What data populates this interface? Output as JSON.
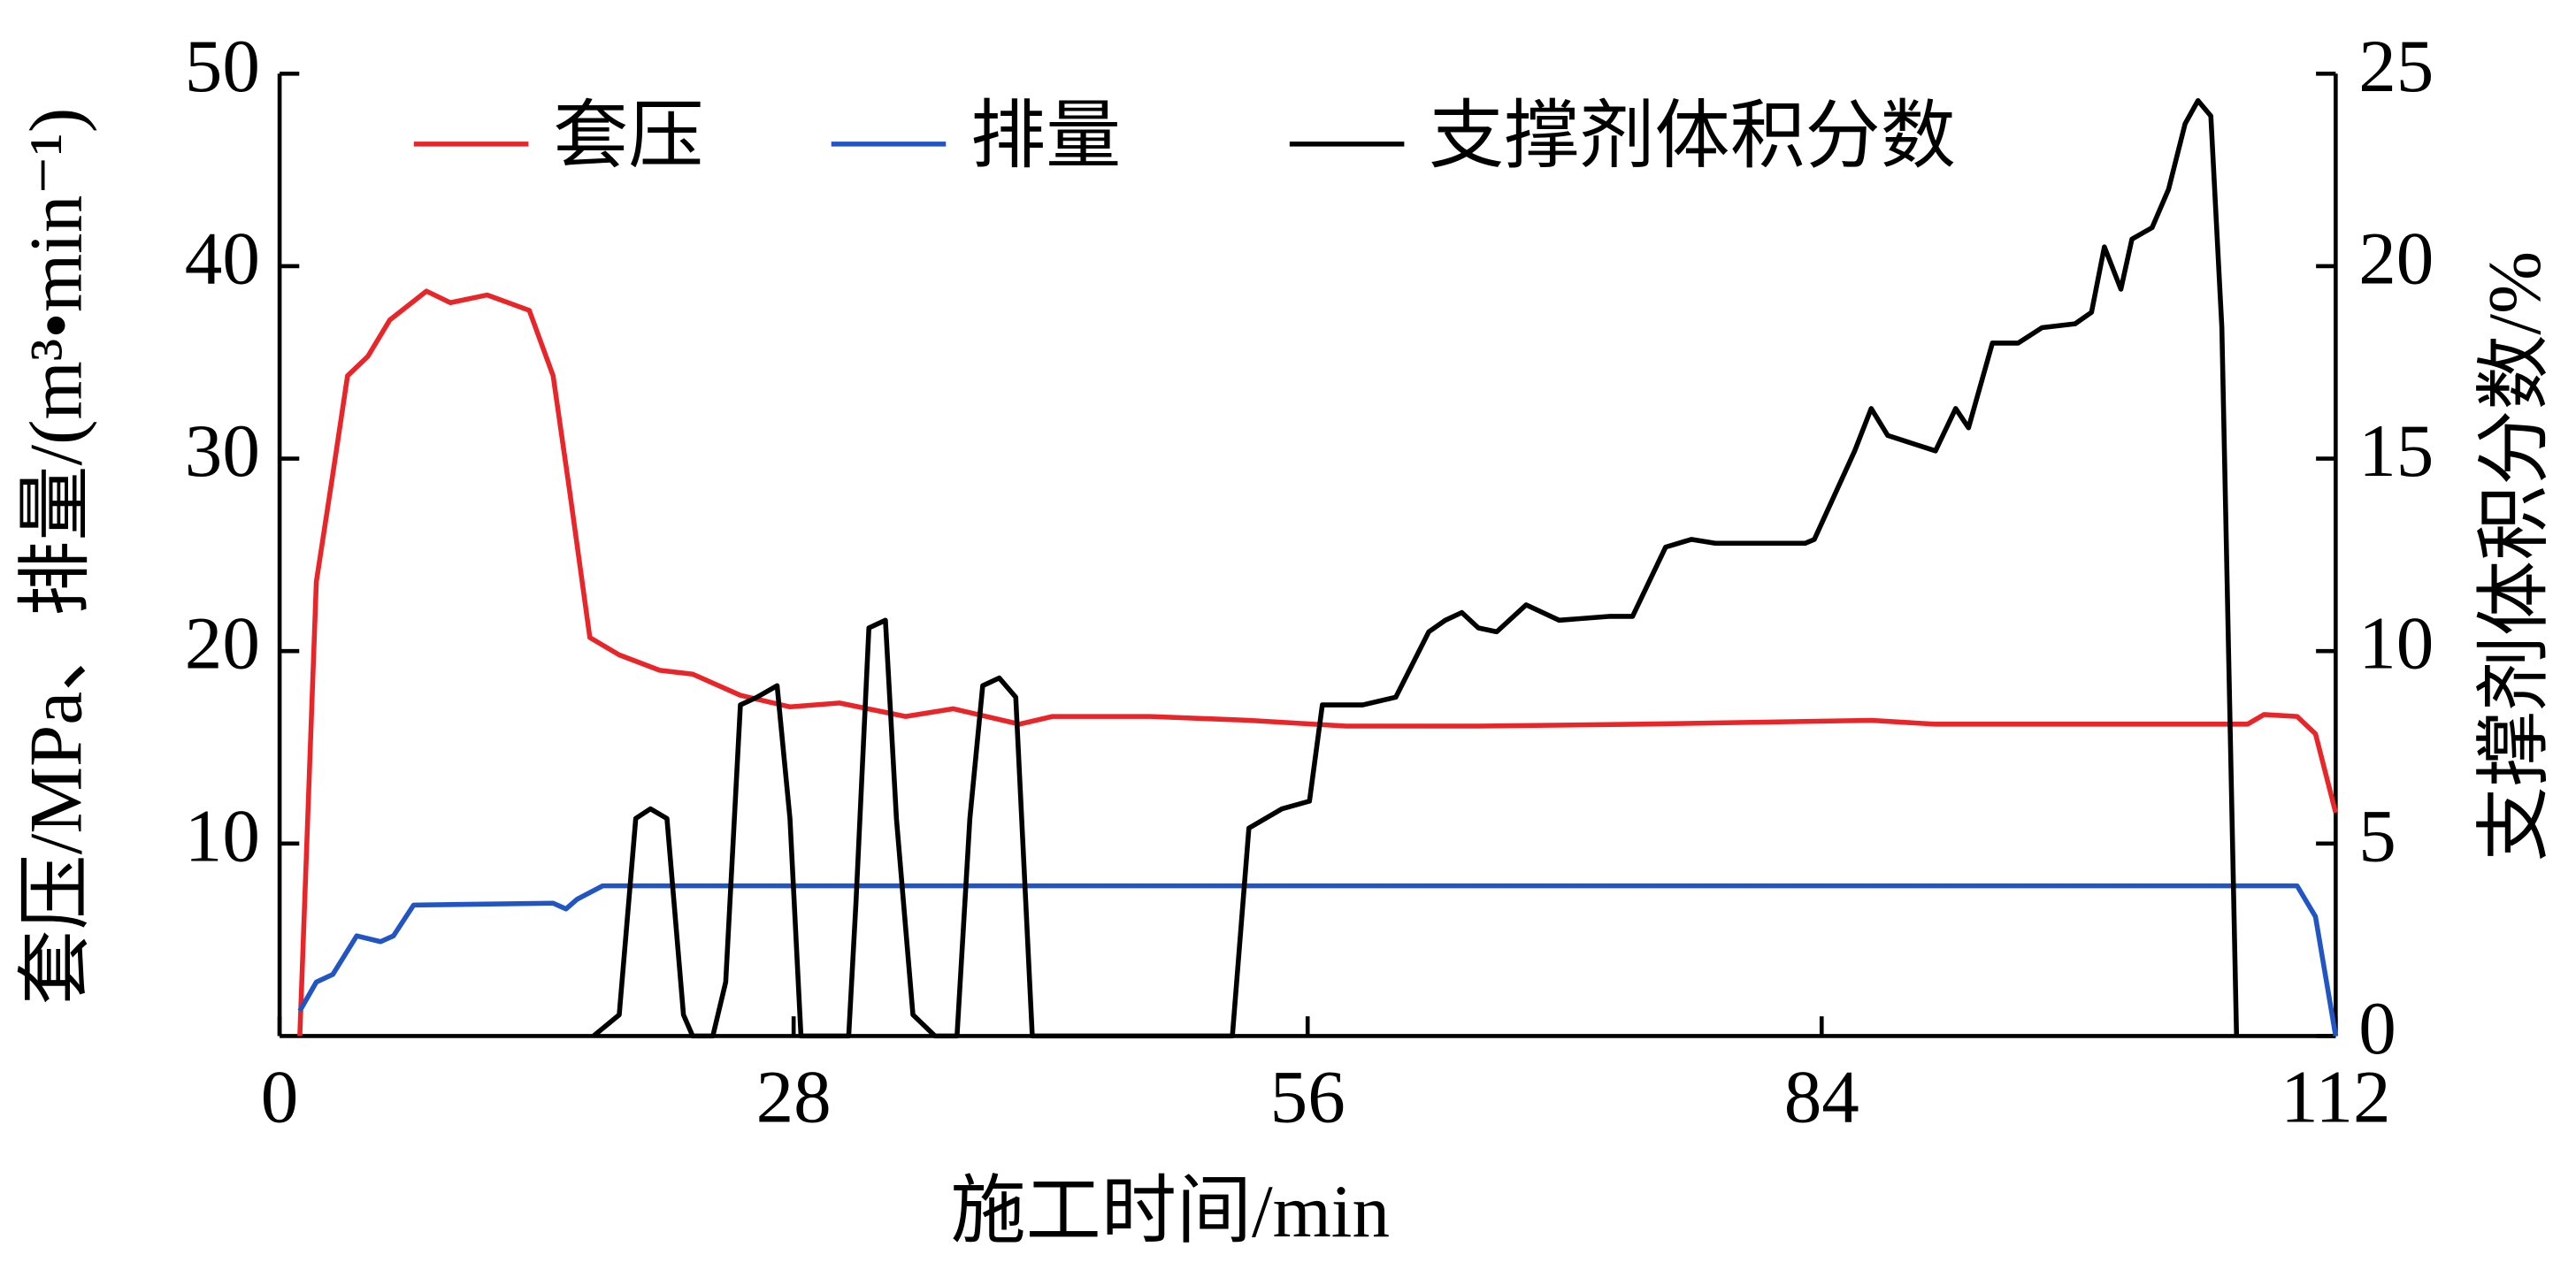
{
  "chart_data": {
    "type": "line",
    "x_label": "施工时间/min",
    "y_label": "套压/MPa、排量/(m³•min⁻¹)",
    "y2_label": "支撑剂体积分数/%",
    "xlim": [
      0,
      112
    ],
    "xticks": [
      0,
      28,
      56,
      84,
      112
    ],
    "ylim": [
      0,
      50
    ],
    "yticks": [
      10,
      20,
      30,
      40,
      50
    ],
    "y2lim": [
      0,
      25
    ],
    "y2ticks": [
      0,
      5,
      10,
      15,
      20,
      25
    ],
    "legend": "top",
    "series": [
      {
        "name": "套压",
        "color": "#e8262a",
        "x": [
          1.1,
          2.0,
          2.9,
          3.7,
          4.8,
          6.0,
          8.0,
          9.3,
          11.3,
          13.6,
          14.9,
          15.8,
          16.9,
          18.5,
          20.7,
          22.5,
          25.1,
          27.8,
          30.5,
          34.1,
          36.7,
          40.3,
          42.1,
          47.4,
          52.8,
          58.1,
          65.3,
          74.2,
          86.7,
          90.2,
          107.2,
          108.1,
          109.9,
          110.9,
          112
        ],
        "values": [
          0,
          23.6,
          29.2,
          34.3,
          35.3,
          37.2,
          38.7,
          38.1,
          38.5,
          37.7,
          34.3,
          28.3,
          20.7,
          19.8,
          19.0,
          18.8,
          17.7,
          17.1,
          17.3,
          16.6,
          17.0,
          16.2,
          16.6,
          16.6,
          16.4,
          16.1,
          16.1,
          16.2,
          16.4,
          16.2,
          16.2,
          16.7,
          16.6,
          15.7,
          11.6
        ]
      },
      {
        "name": "排量",
        "color": "#2255c4",
        "x": [
          1.1,
          2.0,
          2.9,
          4.2,
          5.5,
          6.2,
          7.3,
          14.9,
          15.6,
          16.2,
          17.6,
          109.9,
          110.9,
          112
        ],
        "values": [
          1.3,
          2.8,
          3.2,
          5.2,
          4.9,
          5.2,
          6.8,
          6.9,
          6.6,
          7.1,
          7.8,
          7.8,
          6.2,
          0
        ]
      },
      {
        "name": "支撑剂体积分数",
        "color": "#000000",
        "axis": "y2",
        "x": [
          17.1,
          18.5,
          19.4,
          20.2,
          21.1,
          22.0,
          22.5,
          23.6,
          24.3,
          25.1,
          26.0,
          27.1,
          27.8,
          28.4,
          31.0,
          31.4,
          32.1,
          33.0,
          33.6,
          34.5,
          35.7,
          36.9,
          37.6,
          38.3,
          39.2,
          40.1,
          41.0,
          51.9,
          52.8,
          54.6,
          56.1,
          56.8,
          59.0,
          60.8,
          62.6,
          63.5,
          64.4,
          65.3,
          66.3,
          67.9,
          69.7,
          72.4,
          73.7,
          75.5,
          76.9,
          78.2,
          83.1,
          83.6,
          85.8,
          86.7,
          87.6,
          90.2,
          91.3,
          92.0,
          93.3,
          94.7,
          96.0,
          97.8,
          98.7,
          99.4,
          100.3,
          100.9,
          102.0,
          102.9,
          103.8,
          104.5,
          105.2,
          105.8,
          106.6
        ],
        "values": [
          0,
          0.55,
          5.65,
          5.9,
          5.65,
          0.55,
          0,
          0,
          1.4,
          8.6,
          8.8,
          9.1,
          5.65,
          0,
          0,
          3.5,
          10.6,
          10.8,
          5.65,
          0.55,
          0,
          0,
          5.65,
          9.1,
          9.3,
          8.8,
          0,
          0,
          5.4,
          5.9,
          6.1,
          8.6,
          8.6,
          8.8,
          10.5,
          10.8,
          11.0,
          10.6,
          10.5,
          11.2,
          10.8,
          10.9,
          10.9,
          12.7,
          12.9,
          12.8,
          12.8,
          12.9,
          15.2,
          16.3,
          15.6,
          15.2,
          16.3,
          15.8,
          18.0,
          18.0,
          18.4,
          18.5,
          18.8,
          20.5,
          19.4,
          20.7,
          21.0,
          22.0,
          23.7,
          24.3,
          23.9,
          18.4,
          0
        ]
      }
    ]
  }
}
